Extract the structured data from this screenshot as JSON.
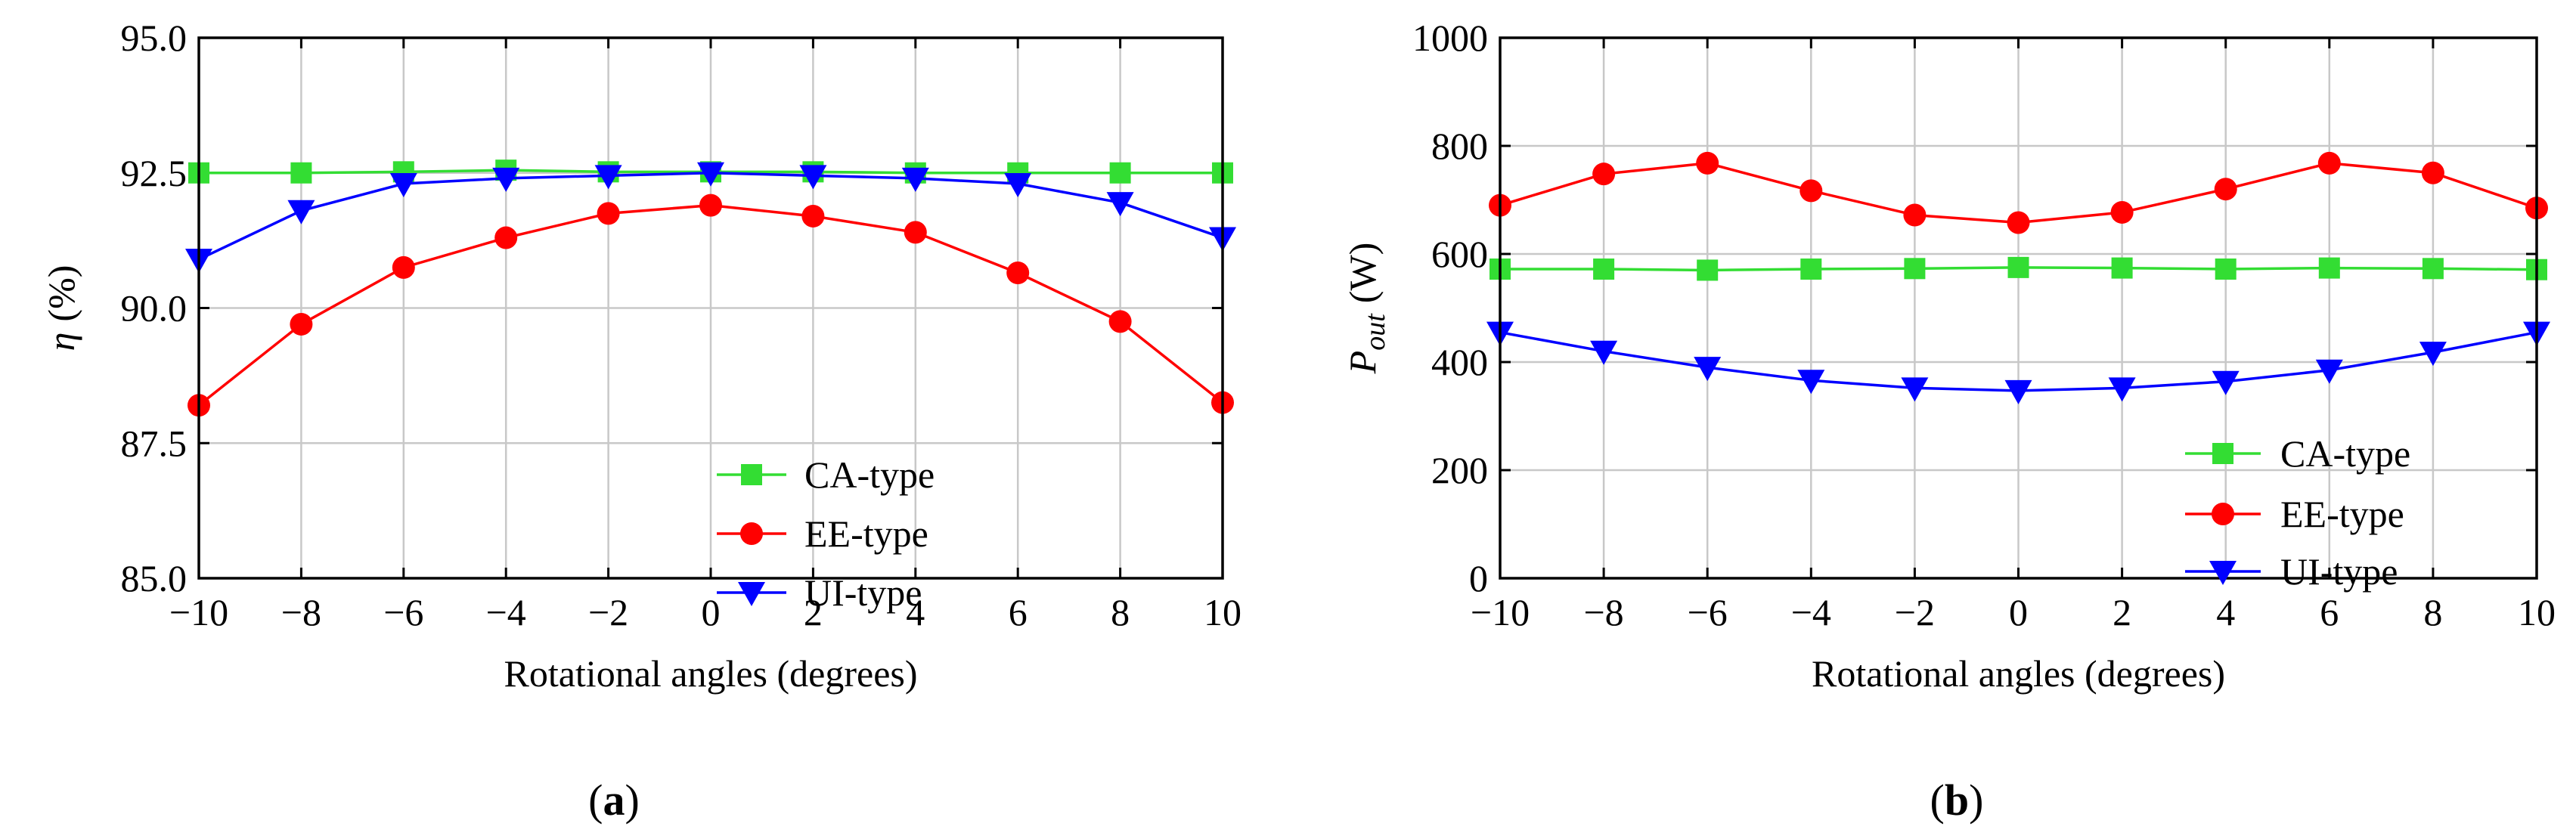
{
  "chart_data": [
    {
      "type": "line",
      "panel": "a",
      "caption_letter": "a",
      "caption_open": "(",
      "caption_close": ")",
      "xlabel": "Rotational angles (degrees)",
      "ylabel_symbol": "η",
      "ylabel_unit": "(%)",
      "xlim": [
        -10,
        10
      ],
      "ylim": [
        85.0,
        95.0
      ],
      "xticks": [
        -10,
        -8,
        -6,
        -4,
        -2,
        0,
        2,
        4,
        6,
        8,
        10
      ],
      "xtick_labels": [
        "−10",
        "−8",
        "−6",
        "−4",
        "−2",
        "0",
        "2",
        "4",
        "6",
        "8",
        "10"
      ],
      "yticks": [
        85.0,
        87.5,
        90.0,
        92.5,
        95.0
      ],
      "ytick_labels": [
        "85.0",
        "87.5",
        "90.0",
        "92.5",
        "95.0"
      ],
      "grid": true,
      "legend_position": "lower-right",
      "x": [
        -10,
        -8,
        -6,
        -4,
        -2,
        0,
        2,
        4,
        6,
        8,
        10
      ],
      "series": [
        {
          "name": "CA-type",
          "color": "#33dd33",
          "marker": "square",
          "values": [
            92.5,
            92.5,
            92.52,
            92.55,
            92.52,
            92.52,
            92.52,
            92.5,
            92.5,
            92.5,
            92.5
          ]
        },
        {
          "name": "EE-type",
          "color": "#ff0000",
          "marker": "circle",
          "values": [
            88.2,
            89.7,
            90.75,
            91.3,
            91.75,
            91.9,
            91.7,
            91.4,
            90.65,
            89.75,
            88.25
          ]
        },
        {
          "name": "UI-type",
          "color": "#0000ff",
          "marker": "triangle-down",
          "values": [
            90.9,
            91.8,
            92.3,
            92.4,
            92.45,
            92.5,
            92.45,
            92.4,
            92.3,
            91.95,
            91.3
          ]
        }
      ]
    },
    {
      "type": "line",
      "panel": "b",
      "caption_letter": "b",
      "caption_open": "(",
      "caption_close": ")",
      "xlabel": "Rotational angles  (degrees)",
      "ylabel_symbol": "P",
      "ylabel_subscript": "out",
      "ylabel_unit": "(W)",
      "xlim": [
        -10,
        10
      ],
      "ylim": [
        0,
        1000
      ],
      "xticks": [
        -10,
        -8,
        -6,
        -4,
        -2,
        0,
        2,
        4,
        6,
        8,
        10
      ],
      "xtick_labels": [
        "−10",
        "−8",
        "−6",
        "−4",
        "−2",
        "0",
        "2",
        "4",
        "6",
        "8",
        "10"
      ],
      "yticks": [
        0,
        200,
        400,
        600,
        800,
        1000
      ],
      "ytick_labels": [
        "0",
        "200",
        "400",
        "600",
        "800",
        "1000"
      ],
      "grid": true,
      "legend_position": "lower-right",
      "x": [
        -10,
        -8,
        -6,
        -4,
        -2,
        0,
        2,
        4,
        6,
        8,
        10
      ],
      "series": [
        {
          "name": "CA-type",
          "color": "#33dd33",
          "marker": "square",
          "values": [
            572,
            572,
            570,
            572,
            573,
            575,
            574,
            572,
            574,
            573,
            571
          ]
        },
        {
          "name": "EE-type",
          "color": "#ff0000",
          "marker": "circle",
          "values": [
            690,
            748,
            768,
            717,
            672,
            658,
            677,
            720,
            768,
            750,
            685
          ]
        },
        {
          "name": "UI-type",
          "color": "#0000ff",
          "marker": "triangle-down",
          "values": [
            455,
            420,
            390,
            366,
            352,
            347,
            352,
            364,
            385,
            418,
            455
          ]
        }
      ]
    }
  ]
}
